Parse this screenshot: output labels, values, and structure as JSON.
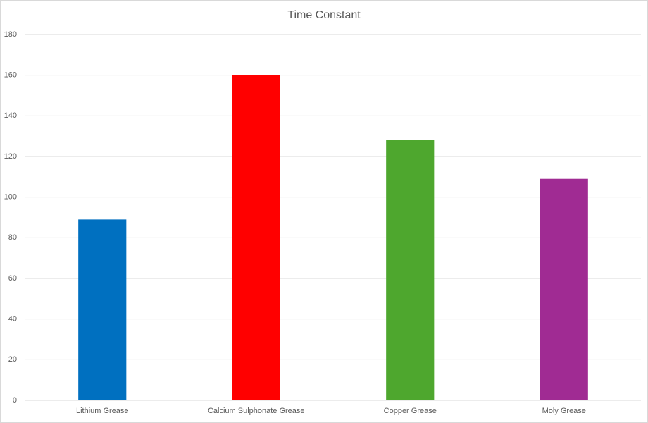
{
  "chart_data": {
    "type": "bar",
    "title": "Time Constant",
    "categories": [
      "Lithium Grease",
      "Calcium Sulphonate Grease",
      "Copper Grease",
      "Moly Grease"
    ],
    "values": [
      89,
      160,
      128,
      109
    ],
    "colors": [
      "#0070c0",
      "#ff0000",
      "#4ea72e",
      "#a02b93"
    ],
    "ylim": [
      0,
      180
    ],
    "yticks": [
      0,
      20,
      40,
      60,
      80,
      100,
      120,
      140,
      160,
      180
    ],
    "grid": true
  }
}
